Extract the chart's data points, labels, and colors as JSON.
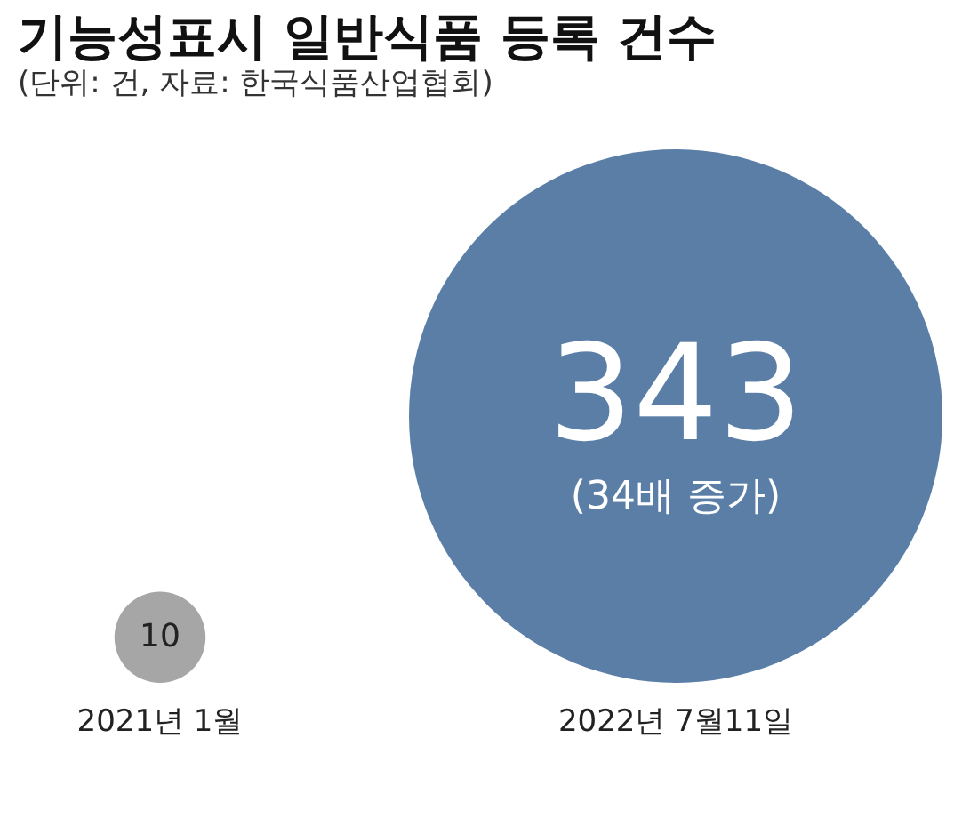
{
  "chart_data": {
    "type": "other",
    "title": "기능성표시 일반식품 등록 건수",
    "subtitle": "(단위: 건, 자료: 한국식품산업협회)",
    "categories": [
      "2021년 1월",
      "2022년 7월11일"
    ],
    "values": [
      10,
      343
    ],
    "colors": [
      "#a6a6a6",
      "#5a7ea6"
    ],
    "data_labels": true,
    "annotations": [
      {
        "text": "(34배 증가)",
        "x": "2022년 7월11일"
      }
    ]
  }
}
